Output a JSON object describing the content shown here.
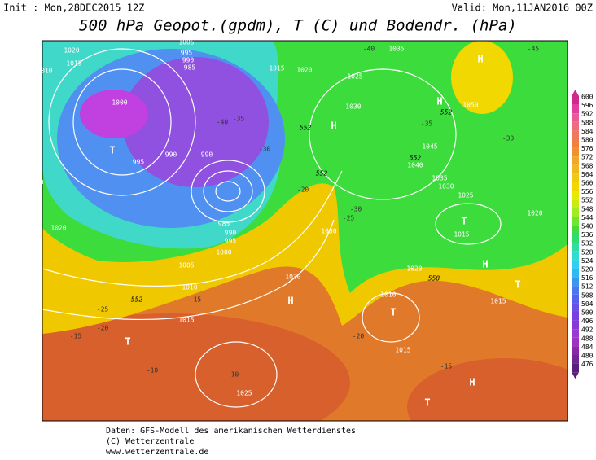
{
  "header": {
    "init": "Init : Mon,28DEC2015 12Z",
    "valid": "Valid: Mon,11JAN2016 00Z",
    "title": "500 hPa Geopot.(gpdm), T (C) und Bodendr. (hPa)"
  },
  "colorbar": {
    "levels": [
      600,
      596,
      592,
      588,
      584,
      580,
      576,
      572,
      568,
      564,
      560,
      556,
      552,
      548,
      544,
      540,
      536,
      532,
      528,
      524,
      520,
      516,
      512,
      508,
      504,
      500,
      496,
      492,
      488,
      484,
      480,
      476
    ],
    "colors": [
      "#d0288c",
      "#e0409c",
      "#e85a9c",
      "#f06a80",
      "#f07860",
      "#f08040",
      "#f09030",
      "#f0a828",
      "#f0b820",
      "#f0c818",
      "#f0d800",
      "#e8e800",
      "#c8ec10",
      "#a0ec20",
      "#70e430",
      "#40dc40",
      "#30dc70",
      "#30dca0",
      "#30dcd0",
      "#30d0f0",
      "#30b8f0",
      "#3898f0",
      "#4878f0",
      "#5860f0",
      "#6850e8",
      "#7840e0",
      "#8838d8",
      "#9838d0",
      "#a030c0",
      "#8828a8",
      "#702890",
      "#582078"
    ]
  },
  "centers": [
    "H",
    "T",
    "H",
    "H",
    "T",
    "H",
    "T",
    "T",
    "H",
    "T",
    "H",
    "T"
  ],
  "pressure_labels": [
    "1020",
    "1015",
    "1010",
    "1005",
    "995",
    "990",
    "985",
    "1000",
    "1000",
    "995",
    "990",
    "990",
    "985",
    "990",
    "995",
    "1000",
    "1005",
    "1010",
    "1015",
    "1020",
    "1025",
    "1015",
    "1020",
    "1025",
    "1035",
    "1030",
    "1045",
    "1040",
    "1035",
    "1030",
    "1025",
    "1015",
    "1030",
    "1030",
    "1020",
    "1010",
    "1015",
    "1015",
    "1020",
    "1025",
    "1050",
    "1020"
  ],
  "temperature_labels": [
    "-40",
    "-35",
    "-30",
    "-30",
    "-25",
    "-20",
    "-25",
    "-20",
    "-15",
    "-10",
    "-10",
    "-15",
    "-20",
    "-15",
    "-30",
    "-35",
    "-40",
    "-45"
  ],
  "height_labels": [
    "552",
    "552",
    "552",
    "552",
    "558",
    "552"
  ],
  "footer": [
    "Daten: GFS-Modell des amerikanischen Wetterdienstes",
    "(C) Wetterzentrale",
    "www.wetterzentrale.de"
  ]
}
